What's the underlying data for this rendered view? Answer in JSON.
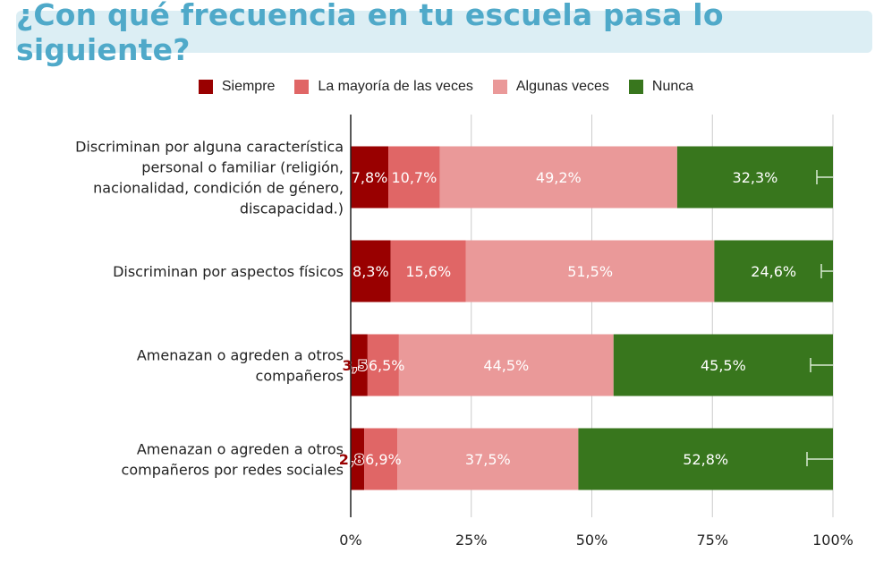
{
  "title": "¿Con qué frecuencia en tu escuela pasa lo siguiente?",
  "colors": {
    "siempre": "#990000",
    "mayoria": "#e06666",
    "algunas": "#ea9999",
    "nunca": "#38761d",
    "title_bg": "#dceef4",
    "title_text": "#4fa9c9"
  },
  "chart_data": {
    "type": "bar",
    "orientation": "horizontal",
    "stacked": true,
    "categories": [
      "Discriminan por alguna característica personal o familiar (religión, nacionalidad, condición de género, discapacidad.)",
      "Discriminan por aspectos físicos",
      "Amenazan o agreden a otros compañeros",
      "Amenazan o agreden a otros compañeros por redes sociales"
    ],
    "category_lines": [
      [
        "Discriminan por alguna característica",
        "personal o familiar (religión,",
        "nacionalidad, condición de género,",
        "discapacidad.)"
      ],
      [
        "Discriminan por aspectos físicos"
      ],
      [
        "Amenazan o agreden a otros",
        "compañeros"
      ],
      [
        "Amenazan o agreden a otros",
        "compañeros por redes sociales"
      ]
    ],
    "series": [
      {
        "name": "Siempre",
        "values": [
          7.8,
          8.3,
          3.5,
          2.8
        ],
        "labels": [
          "7,8%",
          "8,3%",
          "3,5",
          "2,8"
        ]
      },
      {
        "name": "La mayoría de las veces",
        "values": [
          10.7,
          15.6,
          6.5,
          6.9
        ],
        "labels": [
          "10,7%",
          "15,6%",
          "6,5%",
          "6,9%"
        ]
      },
      {
        "name": "Algunas veces",
        "values": [
          49.2,
          51.5,
          44.5,
          37.5
        ],
        "labels": [
          "49,2%",
          "51,5%",
          "44,5%",
          "37,5%"
        ]
      },
      {
        "name": "Nunca",
        "values": [
          32.3,
          24.6,
          45.5,
          52.8
        ],
        "labels": [
          "32,3%",
          "24,6%",
          "45,5%",
          "52,8%"
        ]
      }
    ],
    "xlim": [
      0,
      100
    ],
    "xticks": [
      "0%",
      "25%",
      "50%",
      "75%",
      "100%"
    ],
    "grid": true,
    "legend_position": "top"
  }
}
